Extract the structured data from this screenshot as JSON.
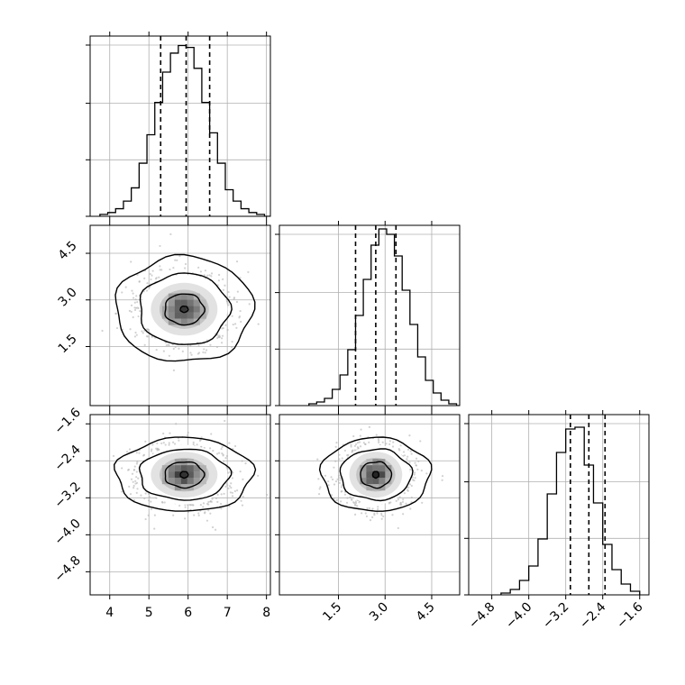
{
  "chart_data": {
    "type": "corner",
    "title": "",
    "grid": true,
    "parameters": [
      {
        "ticks": [
          4,
          5,
          6,
          7,
          8
        ],
        "tick_labels": [
          "4",
          "5",
          "6",
          "7",
          "8"
        ],
        "range": [
          3.5,
          8.1
        ]
      },
      {
        "ticks": [
          1.5,
          3.0,
          4.5
        ],
        "tick_labels": [
          "1.5",
          "3.0",
          "4.5"
        ],
        "range": [
          -0.4,
          5.4
        ]
      },
      {
        "ticks": [
          -4.8,
          -4.0,
          -3.2,
          -2.4,
          -1.6
        ],
        "tick_labels": [
          "−4.8",
          "−4.0",
          "−3.2",
          "−2.4",
          "−1.6"
        ],
        "range": [
          -5.3,
          -1.4
        ]
      }
    ],
    "histograms": [
      {
        "param": 0,
        "quantiles": [
          5.3,
          5.95,
          6.55
        ],
        "bin_start": 3.75,
        "bin_width": 0.2,
        "counts": [
          1,
          2,
          4,
          8,
          15,
          28,
          43,
          60,
          76,
          86,
          90,
          89,
          78,
          60,
          44,
          28,
          14,
          8,
          4,
          2,
          1,
          0
        ],
        "ymax": 95
      },
      {
        "param": 1,
        "quantiles": [
          2.05,
          2.7,
          3.35
        ],
        "bin_start": 0.55,
        "bin_width": 0.25,
        "counts": [
          1,
          2,
          4,
          9,
          17,
          31,
          50,
          70,
          89,
          98,
          95,
          83,
          64,
          45,
          27,
          14,
          7,
          3,
          1,
          0
        ],
        "ymax": 100
      },
      {
        "param": 2,
        "quantiles": [
          -3.1,
          -2.7,
          -2.35
        ],
        "bin_start": -4.6,
        "bin_width": 0.2,
        "counts": [
          1,
          3,
          8,
          16,
          31,
          56,
          79,
          92,
          93,
          72,
          51,
          28,
          14,
          6,
          2
        ],
        "ymax": 100
      }
    ],
    "scatter2d": [
      {
        "x_param": 0,
        "y_param": 1,
        "mean": [
          5.9,
          2.7
        ],
        "sd": [
          0.6,
          0.6
        ],
        "contours": [
          [
            0.1,
            0.1
          ],
          [
            0.5,
            0.5
          ],
          [
            1.15,
            1.15
          ],
          [
            1.75,
            1.7
          ]
        ]
      },
      {
        "x_param": 0,
        "y_param": 2,
        "mean": [
          5.9,
          -2.7
        ],
        "sd": [
          0.6,
          0.35
        ],
        "contours": [
          [
            0.1,
            0.07
          ],
          [
            0.5,
            0.28
          ],
          [
            1.15,
            0.55
          ],
          [
            1.75,
            0.8
          ]
        ]
      },
      {
        "x_param": 1,
        "y_param": 2,
        "mean": [
          2.7,
          -2.7
        ],
        "sd": [
          0.6,
          0.35
        ],
        "contours": [
          [
            0.1,
            0.07
          ],
          [
            0.5,
            0.28
          ],
          [
            1.15,
            0.55
          ],
          [
            1.75,
            0.8
          ]
        ]
      }
    ],
    "colors": {
      "hist": "#000000",
      "scatter": "#b4b4b4",
      "grid": "#b0b0b0",
      "density": "#4a4a4a"
    }
  }
}
